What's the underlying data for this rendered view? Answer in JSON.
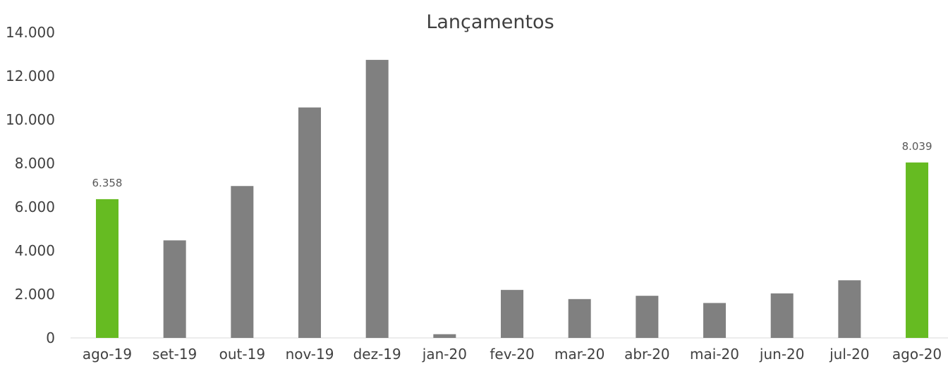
{
  "chart_data": {
    "type": "bar",
    "title": "Lançamentos",
    "xlabel": "",
    "ylabel": "",
    "categories": [
      "ago-19",
      "set-19",
      "out-19",
      "nov-19",
      "dez-19",
      "jan-20",
      "fev-20",
      "mar-20",
      "abr-20",
      "mai-20",
      "jun-20",
      "jul-20",
      "ago-20"
    ],
    "values": [
      6358,
      4470,
      6960,
      10560,
      12740,
      170,
      2200,
      1780,
      1930,
      1600,
      2040,
      2640,
      8039
    ],
    "data_labels": [
      "6.358",
      "",
      "",
      "",
      "",
      "",
      "",
      "",
      "",
      "",
      "",
      "",
      "8.039"
    ],
    "highlighted": [
      true,
      false,
      false,
      false,
      false,
      false,
      false,
      false,
      false,
      false,
      false,
      false,
      true
    ],
    "ylim": [
      0,
      14000
    ],
    "yticks": [
      0,
      2000,
      4000,
      6000,
      8000,
      10000,
      12000,
      14000
    ],
    "ytick_labels": [
      "0",
      "2.000",
      "4.000",
      "6.000",
      "8.000",
      "10.000",
      "12.000",
      "14.000"
    ],
    "grid": false,
    "legend": "none",
    "colors": {
      "bar": "#808080",
      "highlight": "#66bb22",
      "text": "#404040",
      "label_text": "#595959",
      "axis": "#d9d9d9"
    }
  }
}
